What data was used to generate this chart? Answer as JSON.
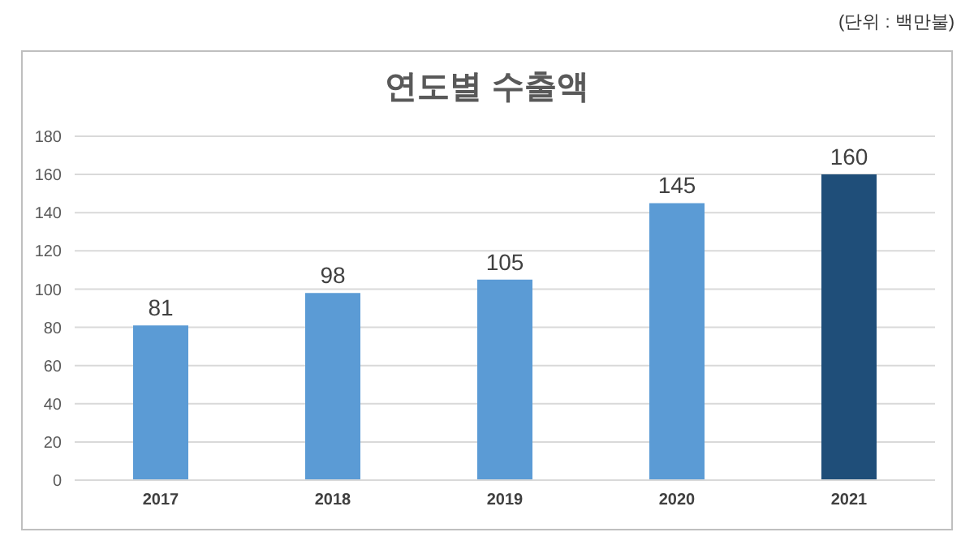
{
  "chart_data": {
    "type": "bar",
    "title": "연도별 수출액",
    "annotations": [
      "(단위 : 백만불)"
    ],
    "categories": [
      "2017",
      "2018",
      "2019",
      "2020",
      "2021"
    ],
    "values": [
      81,
      98,
      105,
      145,
      160
    ],
    "colors": [
      "#5b9bd5",
      "#5b9bd5",
      "#5b9bd5",
      "#5b9bd5",
      "#1f4e79"
    ],
    "ylim": [
      0,
      180
    ],
    "yticks": [
      0,
      20,
      40,
      60,
      80,
      100,
      120,
      140,
      160,
      180
    ],
    "grid": "y",
    "data_labels": true
  }
}
